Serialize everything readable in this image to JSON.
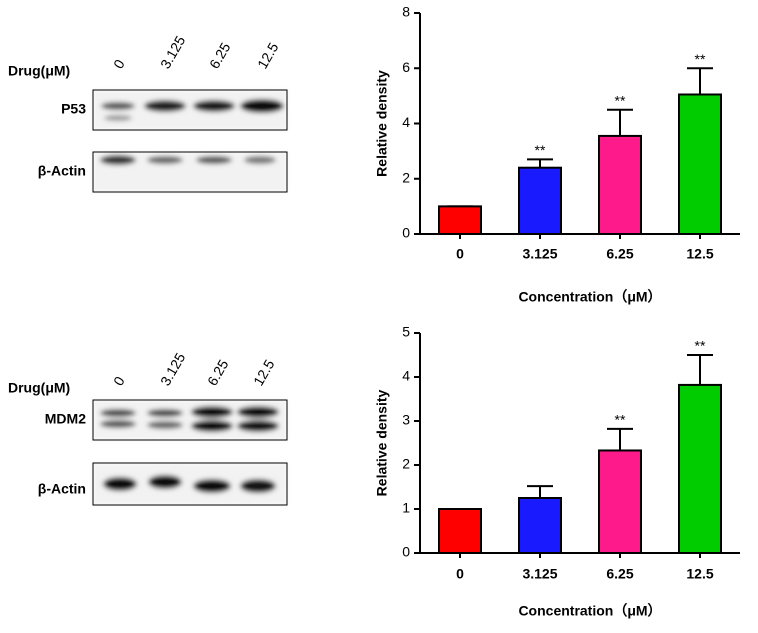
{
  "blots": [
    {
      "header": "Drug(μM)",
      "lanes": [
        "0",
        "3.125",
        "6.25",
        "12.5"
      ],
      "rows": [
        "P53",
        "β-Actin"
      ]
    },
    {
      "header": "Drug(μM)",
      "lanes": [
        "0",
        "3.125",
        "6.25",
        "12.5"
      ],
      "rows": [
        "MDM2",
        "β-Actin"
      ]
    }
  ],
  "chart_data": [
    {
      "type": "bar",
      "x_label": "Concentration（μM）",
      "y_label": "Relative density",
      "categories": [
        "0",
        "3.125",
        "6.25",
        "12.5"
      ],
      "values": [
        1,
        2.4,
        3.55,
        5.05
      ],
      "errors": [
        0,
        0.3,
        0.95,
        0.95
      ],
      "significance": [
        null,
        "**",
        "**",
        "**"
      ],
      "colors": [
        "#ff0000",
        "#1a1aff",
        "#ff1a8c",
        "#00cc00"
      ],
      "ylim": [
        0,
        8
      ],
      "yticks": [
        0,
        2,
        4,
        6,
        8
      ]
    },
    {
      "type": "bar",
      "x_label": "Concentration（μM）",
      "y_label": "Relative density",
      "categories": [
        "0",
        "3.125",
        "6.25",
        "12.5"
      ],
      "values": [
        1,
        1.25,
        2.33,
        3.82
      ],
      "errors": [
        0,
        0.27,
        0.49,
        0.68
      ],
      "significance": [
        null,
        null,
        "**",
        "**"
      ],
      "colors": [
        "#ff0000",
        "#1a1aff",
        "#ff1a8c",
        "#00cc00"
      ],
      "ylim": [
        0,
        5
      ],
      "yticks": [
        0,
        1,
        2,
        3,
        4,
        5
      ]
    }
  ]
}
